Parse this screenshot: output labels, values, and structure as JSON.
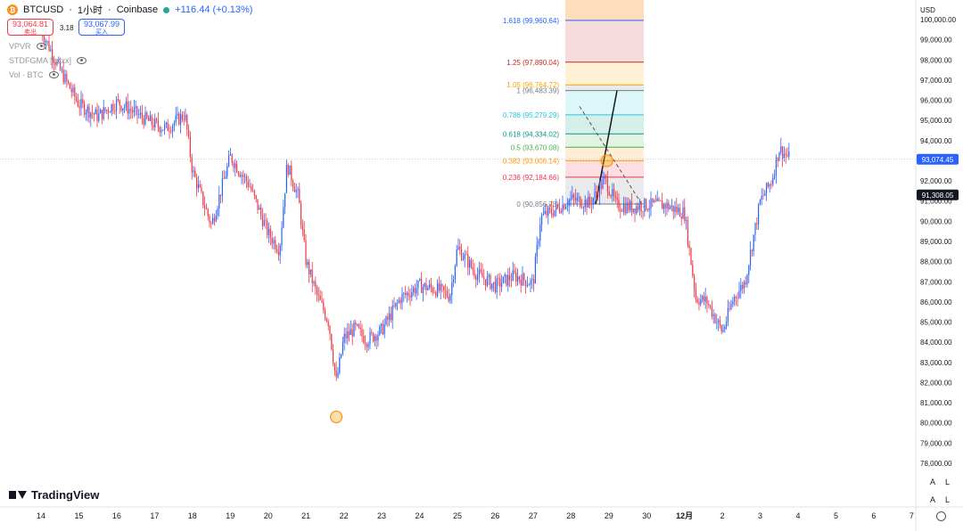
{
  "header": {
    "coin_glyph": "₿",
    "symbol": "BTCUSD",
    "sep1": "·",
    "interval": "1小时",
    "sep2": "·",
    "exchange": "Coinbase",
    "change": "+116.44 (+0.13%)",
    "live_color": "#26a69a"
  },
  "quote": {
    "sell_price": "93,064.81",
    "sell_label": "卖出",
    "spread": "3.18",
    "buy_price": "93,067.99",
    "buy_label": "买入"
  },
  "indicators": [
    {
      "label": "VPVR"
    },
    {
      "label": "STDFGMA [Loxx]"
    },
    {
      "label": "Vol · BTC"
    }
  ],
  "brand": {
    "name": "TradingView"
  },
  "currency": "USD",
  "last_price": "93,074.45",
  "ref_price": "91,308.05",
  "axis_buttons": {
    "auto": "A",
    "log": "L"
  },
  "colors": {
    "up": "#2962ff",
    "down": "#f23645",
    "last_price_bg": "#2962ff",
    "ref_price_bg": "#131722"
  },
  "chart_data": {
    "type": "candlestick",
    "y_axis_labels": [
      "100,000.00",
      "99,000.00",
      "98,000.00",
      "97,000.00",
      "96,000.00",
      "95,000.00",
      "94,000.00",
      "93,000.00",
      "92,000.00",
      "91,000.00",
      "90,000.00",
      "89,000.00",
      "88,000.00",
      "87,000.00",
      "86,000.00",
      "85,000.00",
      "84,000.00",
      "83,000.00",
      "82,000.00",
      "81,000.00",
      "80,000.00",
      "79,000.00",
      "78,000.00"
    ],
    "ylim": [
      77600,
      100500
    ],
    "x_axis_labels": [
      "14",
      "15",
      "16",
      "17",
      "18",
      "19",
      "20",
      "21",
      "22",
      "23",
      "24",
      "25",
      "26",
      "27",
      "28",
      "29",
      "30",
      "12月",
      "2",
      "3",
      "4",
      "5",
      "6",
      "7"
    ],
    "approx_close_path": [
      [
        "14",
        99500
      ],
      [
        "14.5",
        97500
      ],
      [
        "15",
        95800
      ],
      [
        "15.5",
        95200
      ],
      [
        "16",
        95900
      ],
      [
        "16.3",
        95600
      ],
      [
        "16.8",
        95000
      ],
      [
        "17",
        94800
      ],
      [
        "17.3",
        94600
      ],
      [
        "17.8",
        95300
      ],
      [
        "18",
        92500
      ],
      [
        "18.5",
        89800
      ],
      [
        "19",
        93200
      ],
      [
        "19.5",
        91800
      ],
      [
        "20",
        89400
      ],
      [
        "20.3",
        88600
      ],
      [
        "20.5",
        92800
      ],
      [
        "20.8",
        91200
      ],
      [
        "21",
        88000
      ],
      [
        "21.3",
        86300
      ],
      [
        "21.6",
        85000
      ],
      [
        "21.8",
        82000
      ],
      [
        "22",
        84200
      ],
      [
        "22.3",
        84700
      ],
      [
        "22.6",
        84100
      ],
      [
        "23",
        84600
      ],
      [
        "23.5",
        86200
      ],
      [
        "24",
        86800
      ],
      [
        "24.5",
        86600
      ],
      [
        "24.8",
        86300
      ],
      [
        "25",
        88700
      ],
      [
        "25.5",
        87400
      ],
      [
        "26",
        86800
      ],
      [
        "26.5",
        87300
      ],
      [
        "27",
        86900
      ],
      [
        "27.2",
        90200
      ],
      [
        "27.6",
        90600
      ],
      [
        "28",
        91100
      ],
      [
        "28.5",
        90900
      ],
      [
        "28.9",
        92100
      ],
      [
        "29.2",
        90800
      ],
      [
        "29.6",
        90700
      ],
      [
        "30",
        90800
      ],
      [
        "30.5",
        90800
      ],
      [
        "12月",
        90400
      ],
      [
        "12月.3",
        86200
      ],
      [
        "12月.6",
        86000
      ],
      [
        "2",
        84500
      ],
      [
        "2.3",
        86200
      ],
      [
        "2.6",
        87000
      ],
      [
        "3",
        91000
      ],
      [
        "3.3",
        92000
      ],
      [
        "3.5",
        93600
      ],
      [
        "3.8",
        93074
      ]
    ],
    "fibonacci": {
      "levels": [
        {
          "ratio": "1.618",
          "price": "99,960.64",
          "color": "#2962ff"
        },
        {
          "ratio": "1.25",
          "price": "97,890.04",
          "color": "#c62828"
        },
        {
          "ratio": "1.05",
          "price": "96,764.72",
          "color": "#f7a600"
        },
        {
          "ratio": "1",
          "price": "96,483.39",
          "color": "#787b86"
        },
        {
          "ratio": "0.786",
          "price": "95,279.29",
          "color": "#26c6da"
        },
        {
          "ratio": "0.618",
          "price": "94,334.02",
          "color": "#089981"
        },
        {
          "ratio": "0.5",
          "price": "93,670.08",
          "color": "#4caf50"
        },
        {
          "ratio": "0.382",
          "price": "93,006.14",
          "color": "#ff9800"
        },
        {
          "ratio": "0.236",
          "price": "92,184.66",
          "color": "#f23645"
        },
        {
          "ratio": "0",
          "price": "90,856.78",
          "color": "#787b86"
        }
      ]
    },
    "markers": [
      {
        "x": "21.8",
        "y": 80300
      },
      {
        "x": "28.95",
        "y": 93000
      }
    ]
  }
}
